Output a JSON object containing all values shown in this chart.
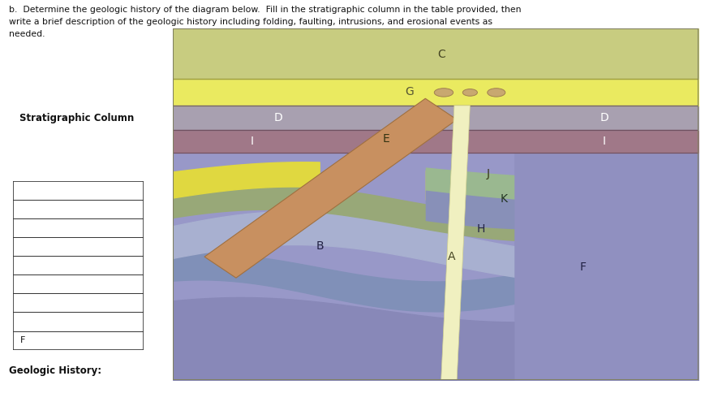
{
  "title_line1": "b.  Determine the geologic history of the diagram below.  Fill in the stratigraphic column in the table provided, then",
  "title_line2": "write a brief description of the geologic history including folding, faulting, intrusions, and erosional events as",
  "title_line3": "needed.",
  "geologic_history_label": "Geologic History:",
  "stratigraphic_column_label": "Stratigraphic Column",
  "fig_bg": "#ffffff",
  "layer_C_color": "#c8cc80",
  "layer_G_color": "#eaea60",
  "layer_D_color": "#a8a0b0",
  "layer_I_color": "#a07888",
  "layer_J_color": "#e0d840",
  "layer_K_color": "#98a878",
  "layer_H_color": "#8890b8",
  "layer_F_color": "#9090c0",
  "layer_B_color": "#a8b0d0",
  "layer_B2_color": "#8090b8",
  "layer_bg_color": "#9898c8",
  "layer_green_right": "#9ab890",
  "layer_blue_right": "#a0b0d0",
  "intrusion_color": "#c89060",
  "fault_color": "#f0f0c0",
  "fossil_color": "#c8a870",
  "diagram_border": "#808060",
  "layer_line_color": "#707060"
}
